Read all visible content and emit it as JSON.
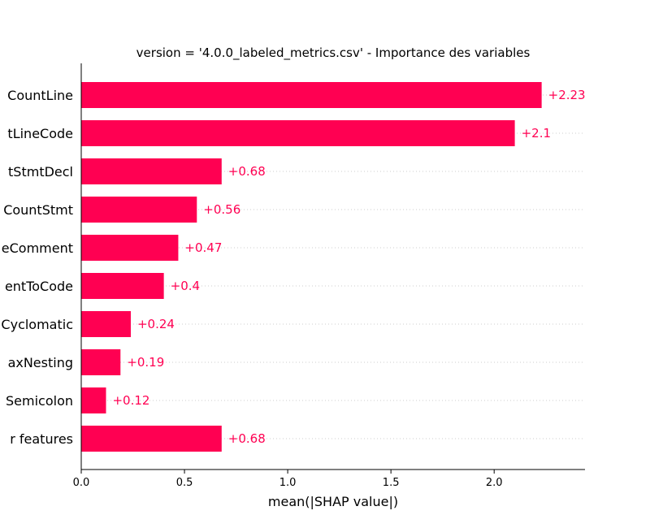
{
  "chart_data": {
    "type": "bar",
    "orientation": "horizontal",
    "title": "version = '4.0.0_labeled_metrics.csv' - Importance des variables",
    "xlabel": "mean(|SHAP value|)",
    "ylabel": "",
    "categories": [
      "CountLine",
      "tLineCode",
      "tStmtDecl",
      "CountStmt",
      "eComment",
      "entToCode",
      "Cyclomatic",
      "axNesting",
      "Semicolon",
      "r features"
    ],
    "values": [
      2.23,
      2.1,
      0.68,
      0.56,
      0.47,
      0.4,
      0.24,
      0.19,
      0.12,
      0.68
    ],
    "value_labels": [
      "+2.23",
      "+2.1",
      "+0.68",
      "+0.56",
      "+0.47",
      "+0.4",
      "+0.24",
      "+0.19",
      "+0.12",
      "+0.68"
    ],
    "xlim": [
      0,
      2.44
    ],
    "xticks": [
      0.0,
      0.5,
      1.0,
      1.5,
      2.0
    ],
    "xtick_labels": [
      "0.0",
      "0.5",
      "1.0",
      "1.5",
      "2.0"
    ],
    "grid": "horizontal dotted",
    "colors": {
      "bar": "#ff0052",
      "label": "#ff0052"
    }
  }
}
